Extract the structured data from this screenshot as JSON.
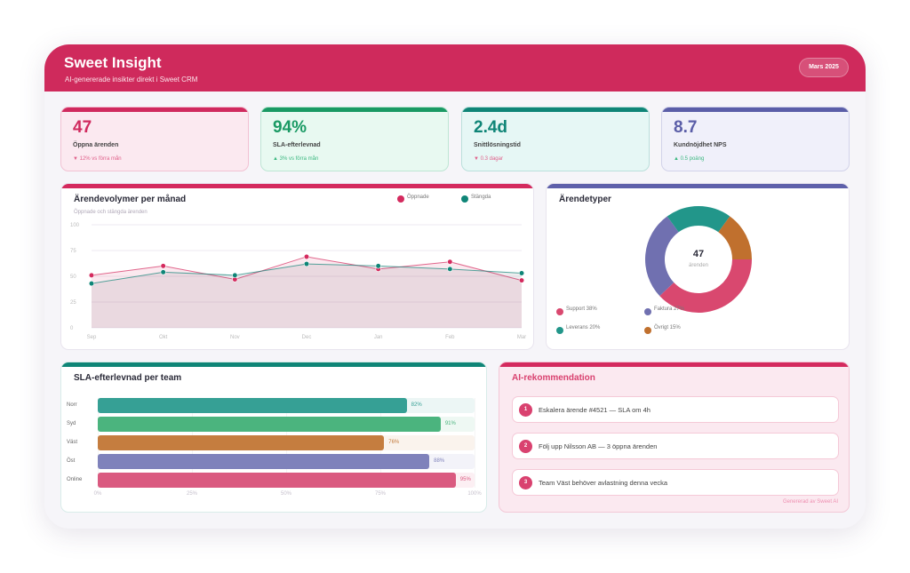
{
  "header": {
    "title": "Sweet Insight",
    "subtitle": "AI-genererade insikter direkt i Sweet CRM",
    "period": "Mars 2025"
  },
  "kpis": [
    {
      "value": "47",
      "label": "Öppna ärenden",
      "delta": "▼ 12% vs förra mån",
      "color": "#d02a5e",
      "bg": "#fbe9f0",
      "deltaColor": "#e0608a"
    },
    {
      "value": "94%",
      "label": "SLA-efterlevnad",
      "delta": "▲ 3% vs förra mån",
      "color": "#1a9a64",
      "bg": "#e8f9f1",
      "deltaColor": "#3cb880"
    },
    {
      "value": "2.4d",
      "label": "Snittlösningstid",
      "delta": "▼ 0.3 dagar",
      "color": "#0f8577",
      "bg": "#e6f7f5",
      "deltaColor": "#e0608a"
    },
    {
      "value": "8.7",
      "label": "Kundnöjdhet NPS",
      "delta": "▲ 0.5 poäng",
      "color": "#5b5ea8",
      "bg": "#f0f0fa",
      "deltaColor": "#3cb880"
    }
  ],
  "chart_data": [
    {
      "type": "line",
      "title": "Ärendevolymer per månad",
      "subtitle": "Öppnade och stängda ärenden",
      "categories": [
        "Sep",
        "Okt",
        "Nov",
        "Dec",
        "Jan",
        "Feb",
        "Mar"
      ],
      "ylim": [
        0,
        100
      ],
      "yticks": [
        0,
        25,
        50,
        75,
        100
      ],
      "legend": "top-right",
      "series": [
        {
          "name": "Öppnade",
          "color": "#d42a5e",
          "values": [
            51,
            60,
            47,
            69,
            57,
            64,
            46
          ]
        },
        {
          "name": "Stängda",
          "color": "#0f8577",
          "values": [
            43,
            54,
            51,
            62,
            60,
            57,
            53
          ]
        }
      ]
    },
    {
      "type": "pie",
      "title": "Ärendetyper",
      "center_value": "47",
      "center_label": "ärenden",
      "slices": [
        {
          "name": "Support",
          "value": 38,
          "label": "Support 38%",
          "color": "#d9486f"
        },
        {
          "name": "Faktura",
          "value": 27,
          "label": "Faktura 27%",
          "color": "#7070b0"
        },
        {
          "name": "Leverans",
          "value": 20,
          "label": "Leverans 20%",
          "color": "#22968a"
        },
        {
          "name": "Övrigt",
          "value": 15,
          "label": "Övrigt 15%",
          "color": "#c0702e"
        }
      ]
    },
    {
      "type": "bar",
      "orientation": "horizontal",
      "title": "SLA-efterlevnad per team",
      "categories": [
        "Norr",
        "Syd",
        "Väst",
        "Öst",
        "Online"
      ],
      "values": [
        82,
        91,
        76,
        88,
        95
      ],
      "labels": [
        "82%",
        "91%",
        "76%",
        "88%",
        "95%"
      ],
      "colors": [
        "#36a095",
        "#4bb47e",
        "#c57d3f",
        "#7f82bb",
        "#da5a80"
      ],
      "xticks": [
        "0%",
        "25%",
        "50%",
        "75%",
        "100%"
      ],
      "xlim": [
        0,
        100
      ]
    }
  ],
  "ai": {
    "title": "AI-rekommendation",
    "items": [
      "Eskalera ärende #4521 — SLA om 4h",
      "Följ upp Nilsson AB — 3 öppna ärenden",
      "Team Väst behöver avlastning denna vecka"
    ],
    "footer": "Genererad av Sweet AI"
  }
}
